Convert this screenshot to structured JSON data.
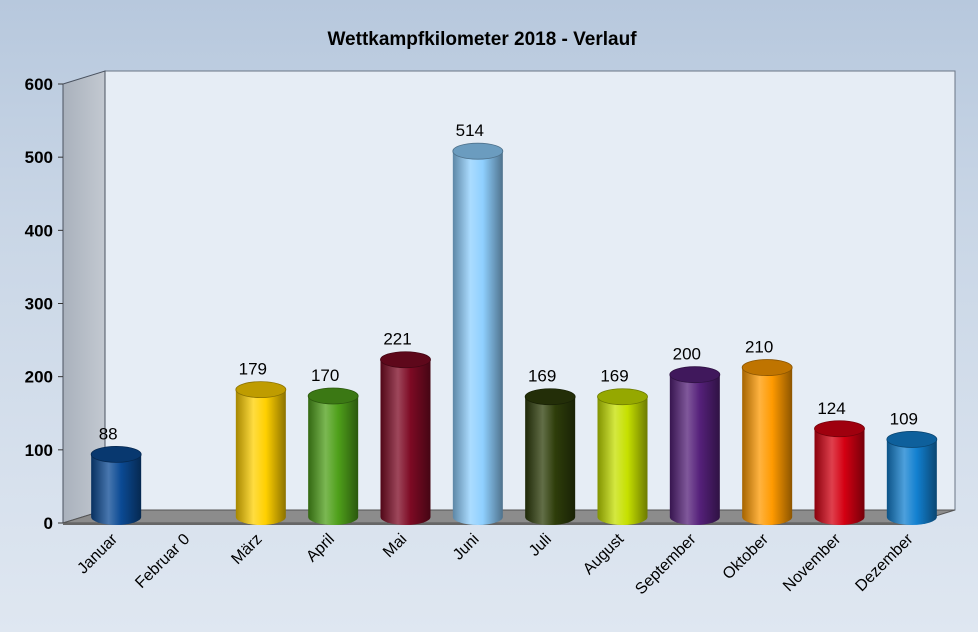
{
  "chart_data": {
    "type": "bar",
    "title": "Wettkampfkilometer 2018 - Verlauf",
    "xlabel": "",
    "ylabel": "",
    "ylim": [
      0,
      600
    ],
    "yticks": [
      "0",
      "100",
      "200",
      "300",
      "400",
      "500",
      "600"
    ],
    "categories": [
      "Januar",
      "Februar 0",
      "März",
      "April",
      "Mai",
      "Juni",
      "Juli",
      "August",
      "September",
      "Oktober",
      "November",
      "Dezember"
    ],
    "values": [
      88,
      0,
      179,
      170,
      221,
      514,
      169,
      169,
      200,
      210,
      124,
      109
    ],
    "data_labels": [
      "88",
      "",
      "179",
      "170",
      "221",
      "514",
      "169",
      "169",
      "200",
      "210",
      "124",
      "109"
    ],
    "colors": [
      "#0b4a94",
      "#9aa0a8",
      "#ffd000",
      "#4fa01a",
      "#7d0a24",
      "#8fd0ff",
      "#2e3d0a",
      "#c6e000",
      "#55207a",
      "#ff9a00",
      "#d40012",
      "#1280d0"
    ],
    "grid": false,
    "legend": "none",
    "style": "3d-cylinder"
  }
}
